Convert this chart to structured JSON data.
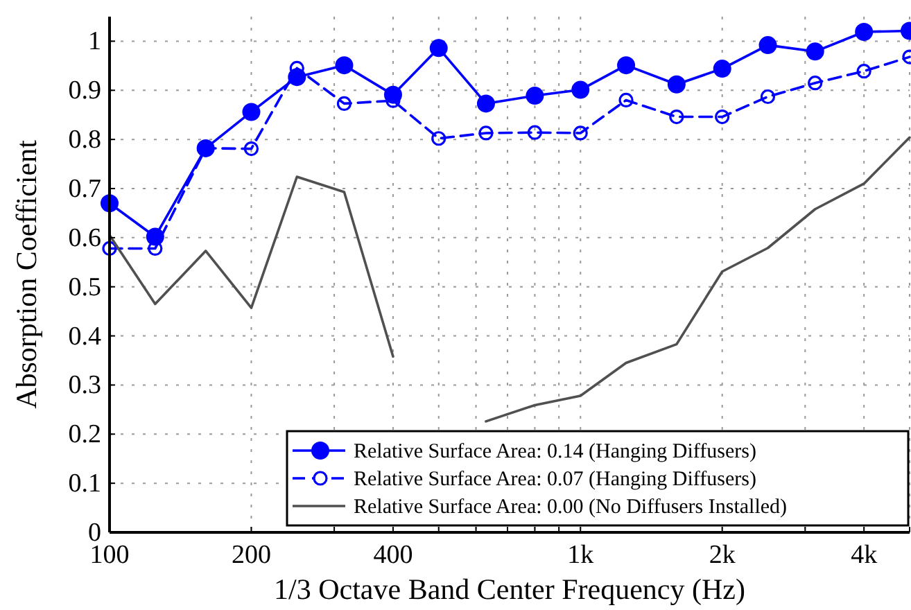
{
  "chart_data": {
    "type": "line",
    "xlabel": "1/3 Octave Band Center Frequency (Hz)",
    "ylabel": "Absorption Coefficient",
    "x": [
      100,
      125,
      160,
      200,
      250,
      315,
      400,
      500,
      630,
      800,
      1000,
      1250,
      1600,
      2000,
      2500,
      3150,
      4000,
      5000
    ],
    "series": [
      {
        "name": "Relative Surface Area: 0.14 (Hanging Diffusers)",
        "color": "#0000ff",
        "marker": "circle",
        "line_style": "solid",
        "values": [
          0.67,
          0.602,
          0.782,
          0.856,
          0.927,
          0.951,
          0.891,
          0.986,
          0.873,
          0.889,
          0.901,
          0.951,
          0.912,
          0.944,
          0.992,
          0.979,
          1.019,
          1.021
        ]
      },
      {
        "name": "Relative Surface Area: 0.07 (Hanging Diffusers)",
        "color": "#0000ff",
        "marker": "circle",
        "line_style": "dashed",
        "values": [
          0.578,
          0.578,
          0.782,
          0.781,
          0.945,
          0.873,
          0.879,
          0.802,
          0.813,
          0.814,
          0.813,
          0.88,
          0.846,
          0.846,
          0.887,
          0.915,
          0.939,
          0.968
        ]
      },
      {
        "name": "Relative Surface Area: 0.00 (No Diffusers Installed)",
        "color": "#505050",
        "marker": "none",
        "line_style": "solid",
        "values": [
          0.605,
          0.465,
          0.573,
          0.457,
          0.724,
          0.693,
          0.358,
          null,
          0.226,
          0.259,
          0.278,
          0.345,
          0.383,
          0.531,
          0.579,
          0.658,
          0.71,
          0.804
        ]
      }
    ],
    "log": "x",
    "xlim": [
      100,
      5000
    ],
    "xticks": [
      100,
      200,
      {
        "value": 300,
        "label": null
      },
      400,
      {
        "value": 500,
        "label": null
      },
      {
        "value": 600,
        "label": null
      },
      {
        "value": 700,
        "label": null
      },
      {
        "value": 800,
        "label": null
      },
      {
        "value": 900,
        "label": null
      },
      {
        "value": 1000,
        "label": "1k"
      },
      {
        "value": 2000,
        "label": "2k"
      },
      {
        "value": 3000,
        "label": null
      },
      {
        "value": 4000,
        "label": "4k"
      },
      {
        "value": 5000,
        "label": null
      }
    ],
    "ylim": [
      0,
      1.05
    ],
    "yticks": [
      0,
      0.1,
      0.2,
      0.3,
      0.4,
      0.5,
      0.6,
      0.7,
      0.8,
      0.9,
      1
    ],
    "grid": true,
    "legend": "bottom right"
  }
}
